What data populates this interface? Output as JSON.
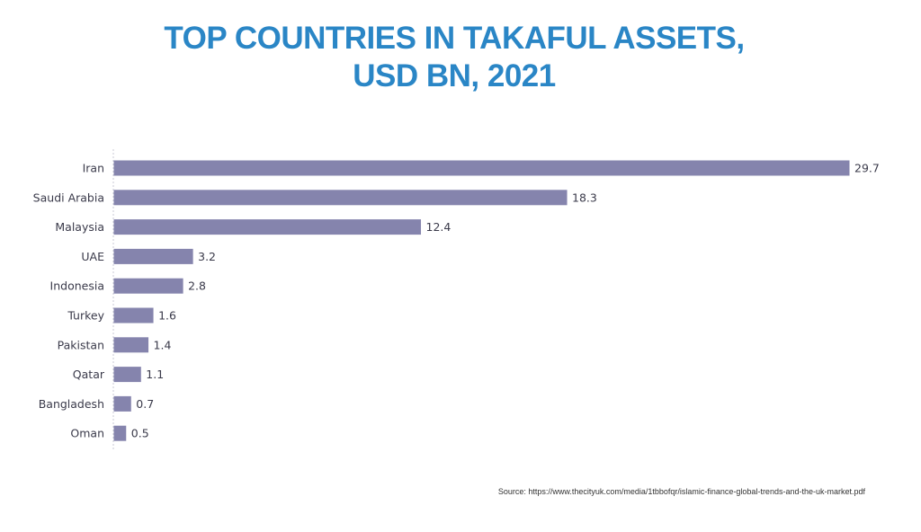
{
  "title": {
    "line1": "TOP COUNTRIES IN TAKAFUL ASSETS,",
    "line2": "USD BN, 2021"
  },
  "source": "Source: https://www.thecityuk.com/media/1tbbofqr/islamic-finance-global-trends-and-the-uk-market.pdf",
  "colors": {
    "title": "#2a86c6",
    "bar": "#8584ad",
    "label": "#3a3a4a",
    "axis": "#c8c8d4"
  },
  "chart_data": {
    "type": "bar",
    "orientation": "horizontal",
    "categories": [
      "Iran",
      "Saudi Arabia",
      "Malaysia",
      "UAE",
      "Indonesia",
      "Turkey",
      "Pakistan",
      "Qatar",
      "Bangladesh",
      "Oman"
    ],
    "values": [
      29.7,
      18.3,
      12.4,
      3.2,
      2.8,
      1.6,
      1.4,
      1.1,
      0.7,
      0.5
    ],
    "data_labels": [
      "29.7",
      "18.3",
      "12.4",
      "3.2",
      "2.8",
      "1.6",
      "1.4",
      "1.1",
      "0.7",
      "0.5"
    ],
    "xlim": [
      0,
      29.7
    ],
    "grid": false,
    "legend": "none"
  }
}
